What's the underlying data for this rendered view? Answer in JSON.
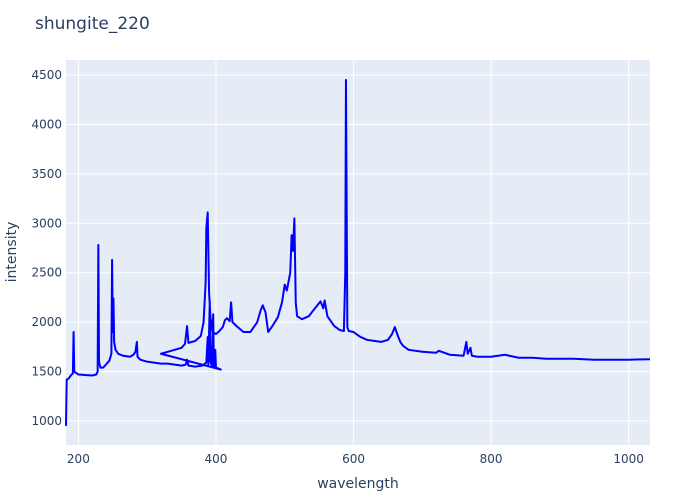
{
  "chart_data": {
    "type": "line",
    "title": "shungite_220",
    "x_label": "wavelength",
    "y_label": "intensity",
    "xlim": [
      182,
      1031
    ],
    "ylim": [
      757,
      4652
    ],
    "xticks": [
      200,
      400,
      600,
      800,
      1000
    ],
    "yticks": [
      1000,
      1500,
      2000,
      2500,
      3000,
      3500,
      4000,
      4500
    ],
    "grid": true,
    "x": [
      182,
      183,
      186,
      190,
      192,
      193,
      194,
      200,
      210,
      220,
      226,
      228,
      229,
      230,
      232,
      236,
      240,
      245,
      248,
      249,
      250,
      251,
      252,
      254,
      258,
      265,
      275,
      280,
      283,
      285,
      286,
      290,
      300,
      310,
      320,
      330,
      340,
      350,
      356,
      358,
      360,
      370,
      380,
      386,
      388,
      389,
      391,
      392,
      394,
      396,
      397,
      399,
      400,
      407,
      320,
      330,
      340,
      350,
      355,
      358,
      360,
      370,
      378,
      382,
      385,
      386,
      388,
      389,
      390,
      392,
      395,
      400,
      405,
      410,
      413,
      416,
      420,
      422,
      424,
      430,
      440,
      450,
      460,
      465,
      468,
      472,
      476,
      482,
      490,
      496,
      500,
      503,
      508,
      510,
      512,
      514,
      516,
      518,
      525,
      535,
      545,
      552,
      556,
      558,
      562,
      566,
      572,
      580,
      586,
      588,
      589,
      590,
      591,
      593,
      600,
      610,
      620,
      630,
      640,
      650,
      656,
      660,
      664,
      668,
      672,
      680,
      700,
      720,
      724,
      740,
      760,
      764,
      766,
      770,
      772,
      780,
      800,
      820,
      840,
      860,
      880,
      900,
      920,
      950,
      980,
      1000,
      1031
    ],
    "series": [
      {
        "name": "shungite_220",
        "color": "#0000ff",
        "values": [
          950,
          1420,
          1430,
          1470,
          1480,
          1900,
          1500,
          1470,
          1465,
          1460,
          1470,
          1500,
          2780,
          1600,
          1540,
          1540,
          1570,
          1610,
          1680,
          2630,
          1900,
          2240,
          1800,
          1720,
          1680,
          1660,
          1650,
          1670,
          1700,
          1800,
          1650,
          1620,
          1600,
          1590,
          1580,
          1580,
          1570,
          1560,
          1570,
          1620,
          1560,
          1550,
          1560,
          1590,
          1850,
          1570,
          2210,
          1600,
          1560,
          2080,
          1550,
          1720,
          1540,
          1520,
          1680,
          1700,
          1720,
          1740,
          1780,
          1960,
          1790,
          1810,
          1860,
          2000,
          2400,
          2950,
          3110,
          2700,
          2300,
          2050,
          1900,
          1880,
          1910,
          1950,
          2020,
          2040,
          2010,
          2200,
          2000,
          1960,
          1900,
          1900,
          2000,
          2120,
          2170,
          2100,
          1900,
          1960,
          2050,
          2200,
          2380,
          2320,
          2500,
          2880,
          2720,
          3050,
          2200,
          2060,
          2030,
          2060,
          2150,
          2210,
          2140,
          2220,
          2060,
          2020,
          1960,
          1920,
          1910,
          2500,
          4450,
          3200,
          1950,
          1910,
          1900,
          1850,
          1820,
          1810,
          1800,
          1820,
          1880,
          1950,
          1870,
          1800,
          1760,
          1720,
          1700,
          1690,
          1710,
          1670,
          1660,
          1800,
          1680,
          1740,
          1660,
          1650,
          1650,
          1670,
          1640,
          1640,
          1630,
          1630,
          1630,
          1620,
          1620,
          1620,
          1625
        ]
      }
    ]
  }
}
